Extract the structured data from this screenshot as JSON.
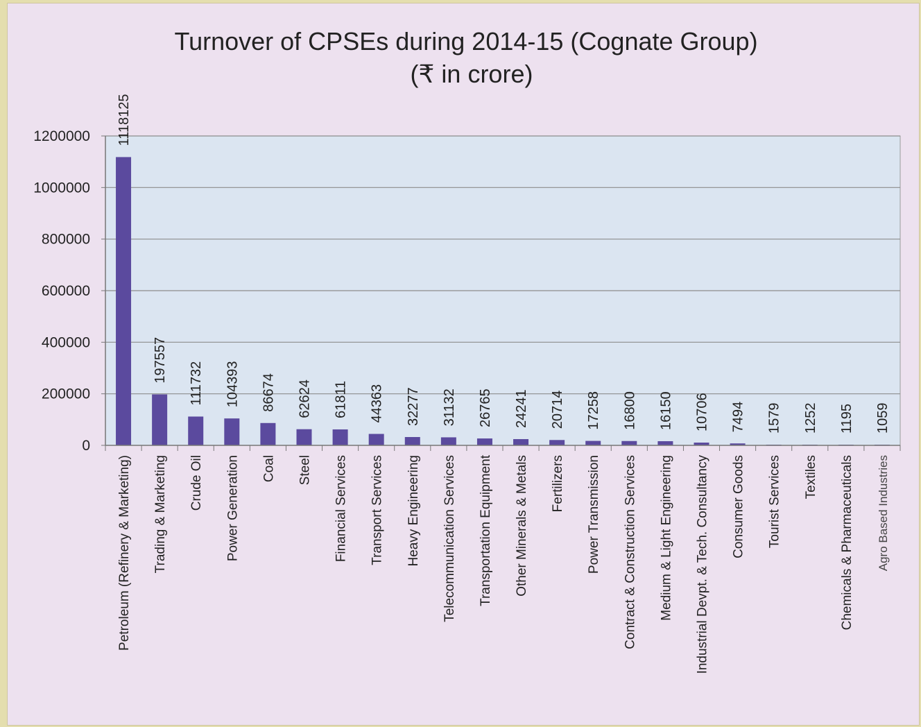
{
  "chart_data": {
    "type": "bar",
    "title": "Turnover of CPSEs during 2014-15 (Cognate Group)",
    "subtitle": "(₹ in crore)",
    "xlabel": "",
    "ylabel": "",
    "ylim": [
      0,
      1200000
    ],
    "yticks": [
      0,
      200000,
      400000,
      600000,
      800000,
      1000000,
      1200000
    ],
    "grid": true,
    "legend": "none",
    "categories": [
      "Petroleum (Refinery & Marketing)",
      "Trading & Marketing",
      "Crude Oil",
      "Power Generation",
      "Coal",
      "Steel",
      "Financial Services",
      "Transport Services",
      "Heavy Engineering",
      "Telecommunication Services",
      "Transportation Equipment",
      "Other Minerals & Metals",
      "Fertilizers",
      "Power Transmission",
      "Contract & Construction Services",
      "Medium & Light Engineering",
      "Industrial Devpt. & Tech. Consultancy",
      "Consumer Goods",
      "Tourist Services",
      "Textiles",
      "Chemicals & Pharmaceuticals",
      "Agro Based Industries"
    ],
    "values": [
      1118125,
      197557,
      111732,
      104393,
      86674,
      62624,
      61811,
      44363,
      32277,
      31132,
      26765,
      24241,
      20714,
      17258,
      16800,
      16150,
      10706,
      7494,
      1579,
      1252,
      1195,
      1059
    ],
    "colors": {
      "bar": "#5b4a9e",
      "plot_background": "#dbe5f1",
      "gridline": "#8c8c8c",
      "page_background": "#ede1ef"
    }
  }
}
